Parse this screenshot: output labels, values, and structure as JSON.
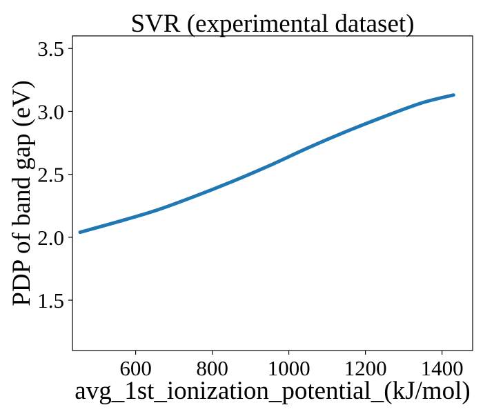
{
  "chart_data": {
    "type": "line",
    "title": "SVR (experimental dataset)",
    "xlabel": "avg_1st_ionization_potential_(kJ/mol)",
    "ylabel": "PDP of band gap (eV)",
    "xlim": [
      435,
      1480
    ],
    "ylim": [
      1.1,
      3.6
    ],
    "xticks": [
      600,
      800,
      1000,
      1200,
      1400
    ],
    "yticks": [
      1.5,
      2.0,
      2.5,
      3.0,
      3.5
    ],
    "xtick_labels": [
      "600",
      "800",
      "1000",
      "1200",
      "1400"
    ],
    "ytick_labels": [
      "1.5",
      "2.0",
      "2.5",
      "3.0",
      "3.5"
    ],
    "grid": false,
    "legend": "none",
    "series": [
      {
        "color": "#1f77b4",
        "x": [
          455,
          550,
          650,
          750,
          850,
          950,
          1050,
          1150,
          1250,
          1350,
          1430
        ],
        "y": [
          2.04,
          2.12,
          2.21,
          2.32,
          2.44,
          2.57,
          2.71,
          2.84,
          2.96,
          3.07,
          3.13
        ]
      }
    ]
  }
}
